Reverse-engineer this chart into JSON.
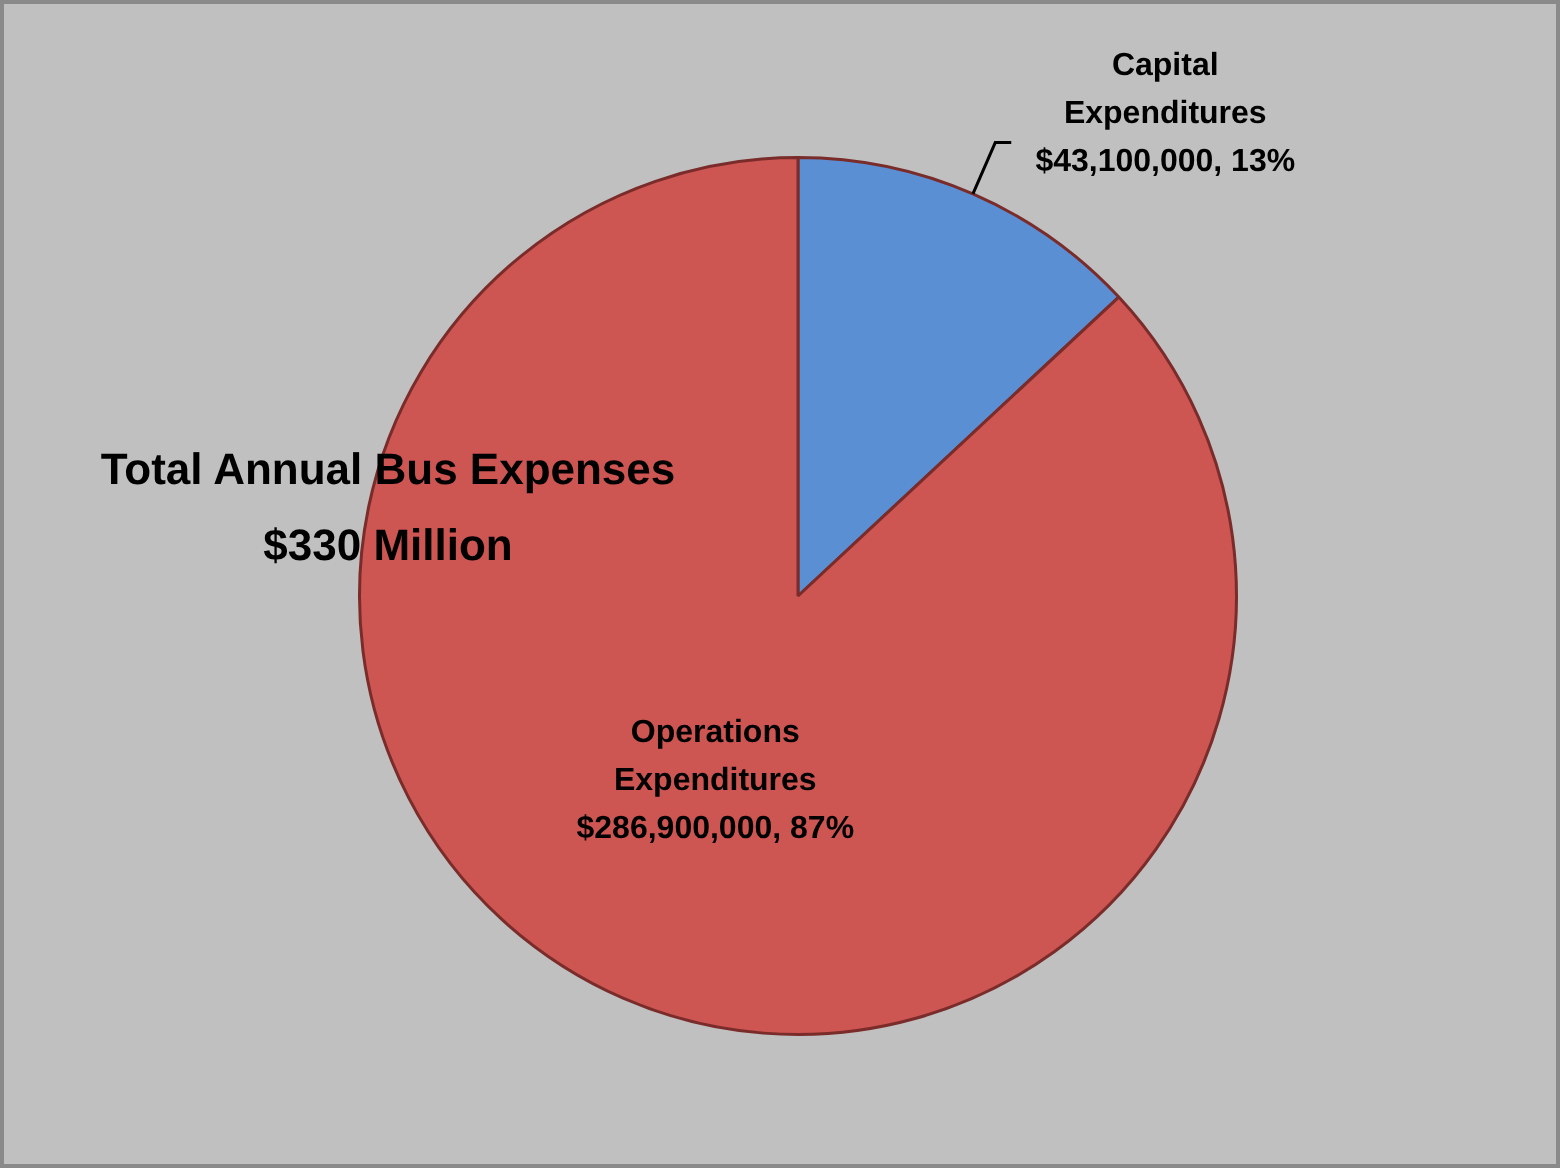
{
  "chart_data": {
    "type": "pie",
    "title": "Total Annual Bus Expenses",
    "subtitle": "$330 Million",
    "categories": [
      "Capital Expenditures",
      "Operations Expenditures"
    ],
    "values": [
      43100000,
      286900000
    ],
    "colors": [
      "#5b8fd4",
      "#cd5552"
    ],
    "value_labels": [
      "$43,100,000, 13%",
      "$286,900,000, 87%"
    ],
    "legend": false
  }
}
